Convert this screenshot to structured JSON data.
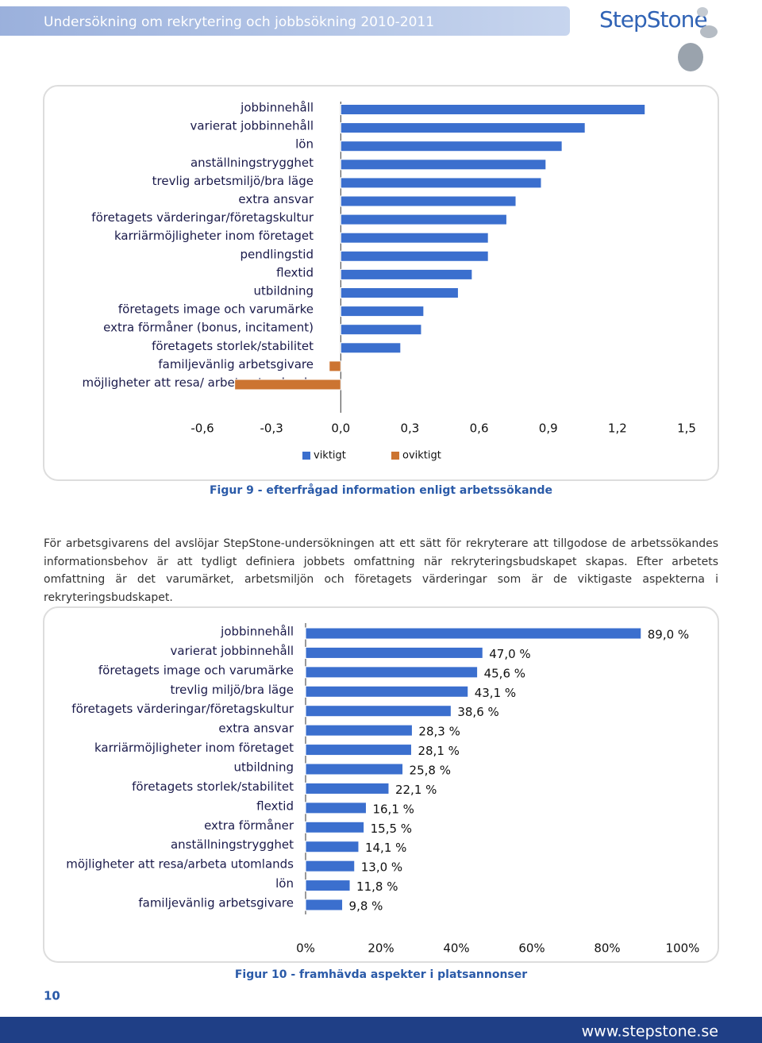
{
  "header": {
    "title": "Undersökning om rekrytering och jobbsökning 2010-2011",
    "logo": "StepStone"
  },
  "chart_data": [
    {
      "type": "bar",
      "orientation": "horizontal",
      "categories": [
        "jobbinnehåll",
        "varierat jobbinnehåll",
        "lön",
        "anställningstrygghet",
        "trevlig arbetsmiljö/bra läge",
        "extra ansvar",
        "företagets värderingar/företagskultur",
        "karriärmöjligheter inom företaget",
        "pendlingstid",
        "flextid",
        "utbildning",
        "företagets image och varumärke",
        "extra förmåner (bonus, incitament)",
        "företagets storlek/stabilitet",
        "familjevänlig arbetsgivare",
        "möjligheter att resa/ arbeta utomlands"
      ],
      "series": [
        {
          "name": "viktigt",
          "color": "#3b6fce",
          "values": [
            1.32,
            1.06,
            0.96,
            0.89,
            0.87,
            0.76,
            0.72,
            0.64,
            0.64,
            0.57,
            0.51,
            0.36,
            0.35,
            0.26,
            null,
            null
          ]
        },
        {
          "name": "oviktigt",
          "color": "#cc7431",
          "values": [
            null,
            null,
            null,
            null,
            null,
            null,
            null,
            null,
            null,
            null,
            null,
            null,
            null,
            null,
            -0.05,
            -0.46
          ]
        }
      ],
      "xlim": [
        -0.6,
        1.5
      ],
      "xticks": [
        {
          "value": -0.6,
          "label": "-0,6"
        },
        {
          "value": -0.3,
          "label": "-0,3"
        },
        {
          "value": 0,
          "label": "0,0"
        },
        {
          "value": 0.3,
          "label": "0,3"
        },
        {
          "value": 0.6,
          "label": "0,6"
        },
        {
          "value": 0.9,
          "label": "0,9"
        },
        {
          "value": 1.2,
          "label": "1,2"
        },
        {
          "value": 1.5,
          "label": "1,5"
        }
      ],
      "legend": "bottom",
      "caption": "Figur 9 - efterfrågad information enligt arbetssökande"
    },
    {
      "type": "bar",
      "orientation": "horizontal",
      "categories": [
        "jobbinnehåll",
        "varierat jobbinnehåll",
        "företagets image och varumärke",
        "trevlig miljö/bra läge",
        "företagets värderingar/företagskultur",
        "extra ansvar",
        "karriärmöjligheter inom företaget",
        "utbildning",
        "företagets storlek/stabilitet",
        "flextid",
        "extra förmåner",
        "anställningstrygghet",
        "möjligheter att resa/arbeta utomlands",
        "lön",
        "familjevänlig arbetsgivare"
      ],
      "values": [
        89.0,
        47.0,
        45.6,
        43.1,
        38.6,
        28.3,
        28.1,
        25.8,
        22.1,
        16.1,
        15.5,
        14.1,
        13.0,
        11.8,
        9.8
      ],
      "value_labels": [
        "89,0 %",
        "47,0 %",
        "45,6 %",
        "43,1 %",
        "38,6 %",
        "28,3 %",
        "28,1 %",
        "25,8 %",
        "22,1 %",
        "16,1 %",
        "15,5 %",
        "14,1 %",
        "13,0 %",
        "11,8 %",
        "9,8 %"
      ],
      "color": "#3b6fce",
      "xlim": [
        0,
        100
      ],
      "xticks": [
        {
          "value": 0,
          "label": "0%"
        },
        {
          "value": 20,
          "label": "20%"
        },
        {
          "value": 40,
          "label": "40%"
        },
        {
          "value": 60,
          "label": "60%"
        },
        {
          "value": 80,
          "label": "80%"
        },
        {
          "value": 100,
          "label": "100%"
        }
      ],
      "caption": "Figur 10 - framhävda aspekter i platsannonser"
    }
  ],
  "paragraph": "För arbetsgivarens del avslöjar StepStone-undersökningen att ett sätt för rekryterare att tillgodose de arbetssökandes informationsbehov är att tydligt definiera jobbets omfattning när rekryteringsbudskapet skapas. Efter arbetets omfattning är det varumärket, arbetsmiljön och företagets värderingar som är de viktigaste aspekterna i rekryteringsbudskapet.",
  "page_number": "10",
  "footer": {
    "url": "www.stepstone.se"
  }
}
